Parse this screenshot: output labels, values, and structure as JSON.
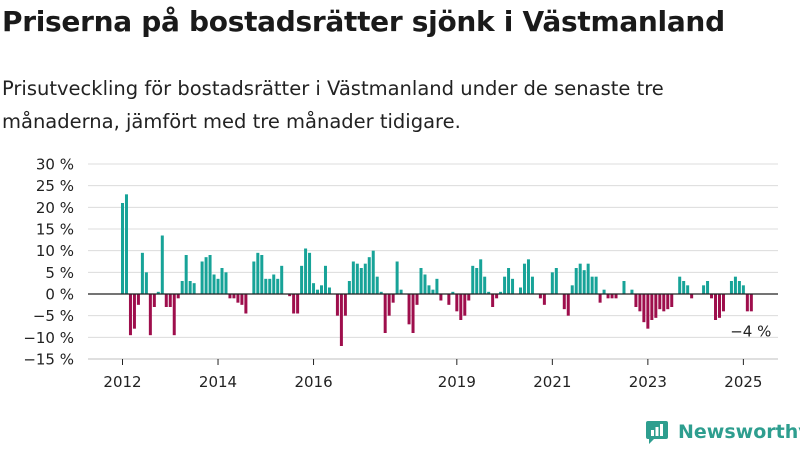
{
  "header": {
    "title": "Priserna på bostadsrätter sjönk i Västmanland",
    "subtitle": "Prisutveckling för bostadsrätter i Västmanland under de senaste tre månaderna, jämfört med tre månader tidigare."
  },
  "brand": {
    "name": "Newsworthy",
    "icon": "newsworthy-logo-icon",
    "color": "#2e9e8f"
  },
  "chart_data": {
    "type": "bar",
    "title": "",
    "xlabel": "",
    "ylabel": "",
    "ylim": [
      -15,
      30
    ],
    "y_ticks": [
      30,
      25,
      20,
      15,
      10,
      5,
      0,
      -5,
      -10,
      -15
    ],
    "y_tick_labels": [
      "30 %",
      "25 %",
      "20 %",
      "15 %",
      "10 %",
      "5 %",
      "0 %",
      "−5 %",
      "−10 %",
      "−15 %"
    ],
    "x_ticks": [
      {
        "label": "2012",
        "year": 2012
      },
      {
        "label": "2014",
        "year": 2014
      },
      {
        "label": "2016",
        "year": 2016
      },
      {
        "label": "2019",
        "year": 2019
      },
      {
        "label": "2021",
        "year": 2021
      },
      {
        "label": "2023",
        "year": 2023
      },
      {
        "label": "2025",
        "year": 2025
      }
    ],
    "positive_color": "#17a398",
    "negative_color": "#9e0e4c",
    "grid": true,
    "last_value_label": "−4 %",
    "series": [
      {
        "x": [
          "2012-01",
          "2012-02",
          "2012-03",
          "2012-04",
          "2012-05",
          "2012-06",
          "2012-07",
          "2012-08",
          "2012-09",
          "2012-10",
          "2012-11",
          "2012-12",
          "2013-01",
          "2013-02",
          "2013-03",
          "2013-04",
          "2013-05",
          "2013-06",
          "2013-07",
          "2013-08",
          "2013-09",
          "2013-10",
          "2013-11",
          "2013-12",
          "2014-01",
          "2014-02",
          "2014-03",
          "2014-04",
          "2014-05",
          "2014-06",
          "2014-07",
          "2014-08",
          "2014-09",
          "2014-10",
          "2014-11",
          "2014-12",
          "2015-01",
          "2015-02",
          "2015-03",
          "2015-04",
          "2015-05",
          "2015-06",
          "2015-07",
          "2015-08",
          "2015-09",
          "2015-10",
          "2015-11",
          "2015-12",
          "2016-01",
          "2016-02",
          "2016-03",
          "2016-04",
          "2016-05",
          "2016-06",
          "2016-07",
          "2016-08",
          "2016-09",
          "2016-10",
          "2016-11",
          "2016-12",
          "2017-01",
          "2017-02",
          "2017-03",
          "2017-04",
          "2017-05",
          "2017-06",
          "2017-07",
          "2017-08",
          "2017-09",
          "2017-10",
          "2017-11",
          "2017-12",
          "2018-01",
          "2018-02",
          "2018-03",
          "2018-04",
          "2018-05",
          "2018-06",
          "2018-07",
          "2018-08",
          "2018-09",
          "2018-10",
          "2018-11",
          "2018-12",
          "2019-01",
          "2019-02",
          "2019-03",
          "2019-04",
          "2019-05",
          "2019-06",
          "2019-07",
          "2019-08",
          "2019-09",
          "2019-10",
          "2019-11",
          "2019-12",
          "2020-01",
          "2020-02",
          "2020-03",
          "2020-04",
          "2020-05",
          "2020-06",
          "2020-07",
          "2020-08",
          "2020-09",
          "2020-10",
          "2020-11",
          "2020-12",
          "2021-01",
          "2021-02",
          "2021-03",
          "2021-04",
          "2021-05",
          "2021-06",
          "2021-07",
          "2021-08",
          "2021-09",
          "2021-10",
          "2021-11",
          "2021-12",
          "2022-01",
          "2022-02",
          "2022-03",
          "2022-04",
          "2022-05",
          "2022-06",
          "2022-07",
          "2022-08",
          "2022-09",
          "2022-10",
          "2022-11",
          "2022-12",
          "2023-01",
          "2023-02",
          "2023-03",
          "2023-04",
          "2023-05",
          "2023-06",
          "2023-07",
          "2023-08",
          "2023-09",
          "2023-10",
          "2023-11",
          "2023-12",
          "2024-01",
          "2024-02",
          "2024-03",
          "2024-04",
          "2024-05",
          "2024-06",
          "2024-07",
          "2024-08",
          "2024-09",
          "2024-10",
          "2024-11",
          "2024-12",
          "2025-01",
          "2025-02",
          "2025-03"
        ],
        "values": [
          21,
          23,
          -9.5,
          -8,
          -2.5,
          9.5,
          5,
          -9.5,
          -3,
          0.5,
          13.5,
          -3,
          -3,
          -9.5,
          -1,
          3,
          9,
          3,
          2.5,
          0,
          7.5,
          8.5,
          9,
          4.5,
          3.5,
          6,
          5,
          -1,
          -1,
          -2,
          -2.5,
          -4.5,
          null,
          7.5,
          9.5,
          9,
          3.5,
          3.5,
          4.5,
          3.5,
          6.5,
          0,
          -0.5,
          -4.5,
          -4.5,
          6.5,
          10.5,
          9.5,
          2.5,
          1,
          2,
          6.5,
          1.5,
          0,
          -5,
          -12,
          -5,
          3,
          7.5,
          7,
          6,
          7,
          8.5,
          10,
          4,
          0.5,
          -9,
          -5,
          -2,
          7.5,
          1,
          0,
          -7,
          -9,
          -2.5,
          6,
          4.5,
          2,
          1,
          3.5,
          -1.5,
          0,
          -2.5,
          0.5,
          -4,
          -6,
          -5,
          -1.5,
          6.5,
          6,
          8,
          4,
          0.5,
          -3,
          -1,
          0.5,
          4,
          6,
          3.5,
          0,
          1.5,
          7,
          8,
          4,
          0,
          -1,
          -2.5,
          0,
          5,
          6,
          0,
          -3.5,
          -5,
          2,
          6,
          7,
          5.5,
          7,
          4,
          4,
          -2,
          1,
          -1,
          -1,
          -1,
          0,
          3,
          0,
          1,
          -3,
          -4,
          -6.5,
          -8,
          -6,
          -5.5,
          -3.5,
          -4,
          -3.5,
          -3,
          0,
          4,
          3,
          2,
          -1,
          0,
          0,
          2,
          3,
          -1,
          -6,
          -5.5,
          -4,
          0,
          3,
          4,
          3,
          2,
          -4,
          -4
        ]
      }
    ]
  }
}
